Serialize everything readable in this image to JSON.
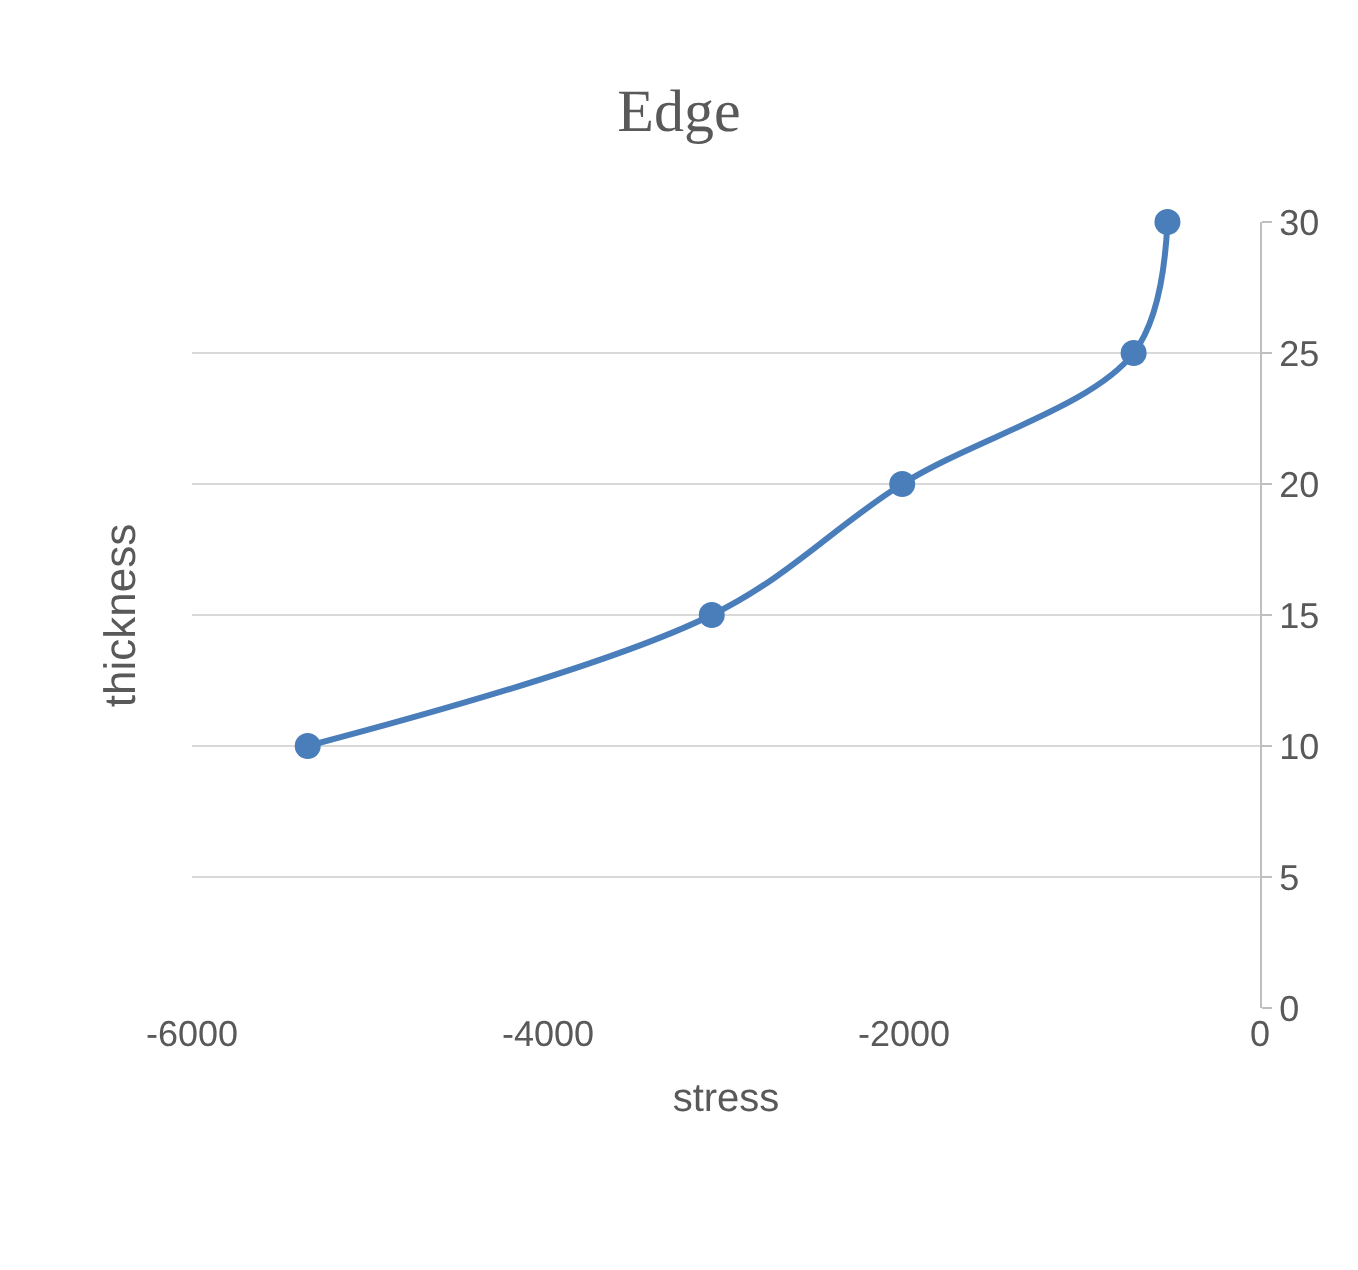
{
  "chart_data": {
    "type": "line",
    "title": "Edge",
    "xlabel": "stress",
    "ylabel": "thickness",
    "x": [
      -5350,
      -3080,
      -2010,
      -710,
      -520
    ],
    "series": [
      {
        "color": "#4a7ebb",
        "values": [
          10,
          15,
          20,
          25,
          30
        ]
      }
    ],
    "xlim": [
      -6000,
      0
    ],
    "xticks": [
      -6000,
      -4000,
      -2000,
      0
    ],
    "ylim": [
      0,
      30
    ],
    "yticks": [
      0,
      5,
      10,
      15,
      20,
      25,
      30
    ],
    "grid": "y",
    "legend": false,
    "marker": "circle",
    "line_style": "solid"
  }
}
